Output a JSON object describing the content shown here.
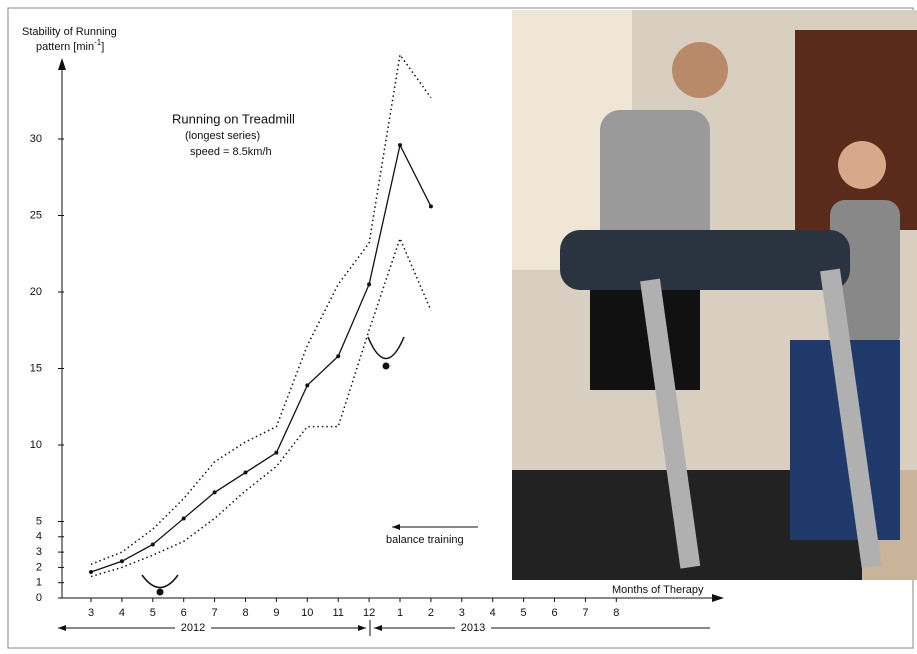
{
  "chart_data": {
    "type": "line",
    "title": "Running on Treadmill",
    "subtitle": "(longest series)",
    "annotation_speed": "speed = 8.5km/h",
    "annotation_training": "balance training",
    "y_label": "Stability of Running",
    "y_label_unit": "pattern [min",
    "y_label_exponent": "-1",
    "y_label_close": "]",
    "x_label": "Months of Therapy",
    "year_labels": [
      "2012",
      "2013"
    ],
    "categories": [
      "3",
      "4",
      "5",
      "6",
      "7",
      "8",
      "9",
      "10",
      "11",
      "12",
      "1",
      "2",
      "3",
      "4",
      "5",
      "6",
      "7",
      "8"
    ],
    "series": [
      {
        "name": "mean",
        "color": "#111111",
        "style": "solid",
        "values": [
          1.7,
          2.4,
          3.5,
          5.2,
          6.9,
          8.2,
          9.5,
          13.9,
          15.8,
          20.5,
          29.6,
          25.6,
          null,
          null,
          null,
          null,
          null,
          null
        ]
      },
      {
        "name": "upper",
        "color": "#111111",
        "style": "dotted",
        "values": [
          2.2,
          3.0,
          4.5,
          6.5,
          8.9,
          10.2,
          11.2,
          16.5,
          20.5,
          23.2,
          35.5,
          32.7,
          null,
          null,
          null,
          null,
          null,
          null
        ]
      },
      {
        "name": "lower",
        "color": "#111111",
        "style": "dotted",
        "values": [
          1.4,
          2.0,
          2.8,
          3.7,
          5.2,
          7.0,
          8.6,
          11.2,
          11.2,
          17.5,
          23.5,
          18.8,
          null,
          null,
          null,
          null,
          null,
          null
        ]
      }
    ],
    "ylim": [
      0,
      36
    ],
    "yticks": [
      0,
      1,
      2,
      3,
      4,
      5,
      10,
      15,
      20,
      25,
      30
    ],
    "grid": false
  }
}
